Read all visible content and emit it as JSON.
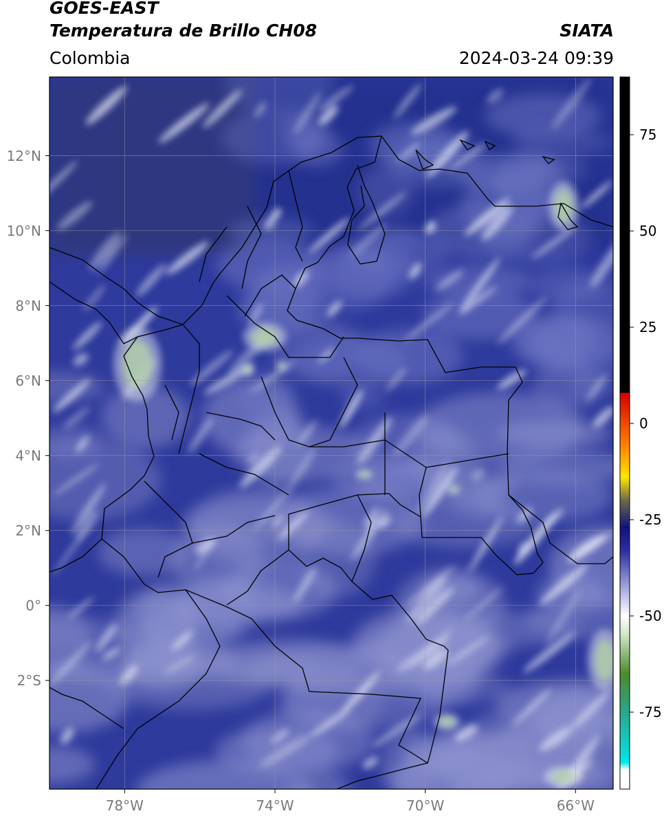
{
  "header": {
    "satellite": "GOES-EAST",
    "product": "Temperatura de Brillo CH08",
    "region": "Colombia",
    "agency": "SIATA",
    "datetime": "2024-03-24 09:39"
  },
  "map": {
    "lon_range": [
      -80.0,
      -65.0
    ],
    "lat_range": [
      -4.9,
      14.1
    ],
    "lat_ticks": [
      {
        "lat": 12,
        "label": "12°N"
      },
      {
        "lat": 10,
        "label": "10°N"
      },
      {
        "lat": 8,
        "label": "8°N"
      },
      {
        "lat": 6,
        "label": "6°N"
      },
      {
        "lat": 4,
        "label": "4°N"
      },
      {
        "lat": 2,
        "label": "2°N"
      },
      {
        "lat": 0,
        "label": "0°"
      },
      {
        "lat": -2,
        "label": "2°S"
      }
    ],
    "lon_ticks": [
      {
        "lon": -78,
        "label": "78°W"
      },
      {
        "lon": -74,
        "label": "74°W"
      },
      {
        "lon": -70,
        "label": "70°W"
      },
      {
        "lon": -66,
        "label": "66°W"
      }
    ],
    "background_color": "#2e3a9c",
    "cloud_color": "#dfe3f5",
    "land_tint_color": "#6b6c9a",
    "border_color": "#000000"
  },
  "colorbar": {
    "range": [
      -95,
      90
    ],
    "ticks": [
      {
        "value": 75,
        "label": "75"
      },
      {
        "value": 50,
        "label": "50"
      },
      {
        "value": 25,
        "label": "25"
      },
      {
        "value": 0,
        "label": "0"
      },
      {
        "value": -25,
        "label": "-25"
      },
      {
        "value": -50,
        "label": "-50"
      },
      {
        "value": -75,
        "label": "-75"
      }
    ],
    "stops": [
      {
        "value": 90,
        "color": "#000000"
      },
      {
        "value": 8,
        "color": "#000000"
      },
      {
        "value": 7.9,
        "color": "#d40000"
      },
      {
        "value": -5,
        "color": "#ff7a00"
      },
      {
        "value": -14,
        "color": "#ffe600"
      },
      {
        "value": -20,
        "color": "#6a6a4a"
      },
      {
        "value": -27,
        "color": "#12127a"
      },
      {
        "value": -33,
        "color": "#2a2ea0"
      },
      {
        "value": -46,
        "color": "#cdd0ef"
      },
      {
        "value": -50,
        "color": "#ffffff"
      },
      {
        "value": -55,
        "color": "#cfe6c4"
      },
      {
        "value": -65,
        "color": "#4b8b2c"
      },
      {
        "value": -75,
        "color": "#2aa68a"
      },
      {
        "value": -88,
        "color": "#00e8e8"
      },
      {
        "value": -90,
        "color": "#ffffff"
      },
      {
        "value": -95,
        "color": "#ffffff"
      }
    ]
  }
}
